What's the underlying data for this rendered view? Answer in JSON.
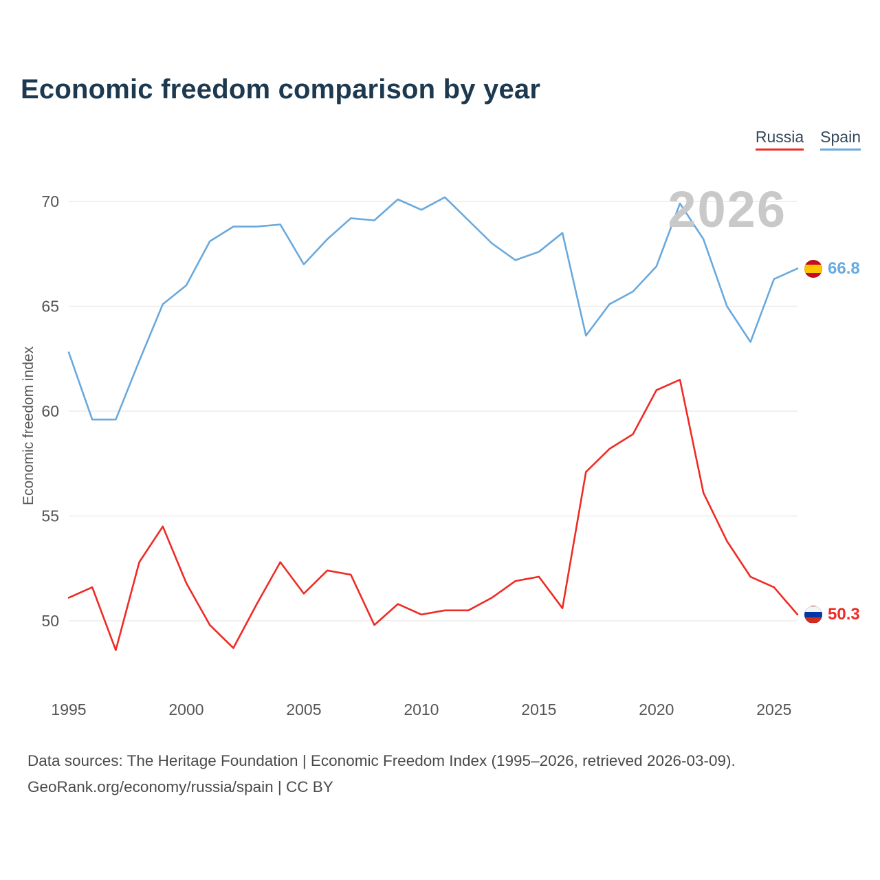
{
  "page": {
    "title": "Economic freedom comparison by year",
    "footer_line1": "Data sources: The Heritage Foundation | Economic Freedom Index (1995–2026, retrieved 2026-03-09).",
    "footer_line2": "GeoRank.org/economy/russia/spain | CC BY"
  },
  "legend": [
    {
      "label": "Russia",
      "color": "#ee2b24"
    },
    {
      "label": "Spain",
      "color": "#69a9de"
    }
  ],
  "chart_data": {
    "type": "line",
    "title": "Economic freedom comparison by year",
    "xlabel": "",
    "ylabel": "Economic freedom index",
    "watermark": "2026",
    "grid": "horizontal",
    "legend_position": "top-right",
    "ylim": [
      47.5,
      71
    ],
    "x": [
      1995,
      1996,
      1997,
      1998,
      1999,
      2000,
      2001,
      2002,
      2003,
      2004,
      2005,
      2006,
      2007,
      2008,
      2009,
      2010,
      2011,
      2012,
      2013,
      2014,
      2015,
      2016,
      2017,
      2018,
      2019,
      2020,
      2021,
      2022,
      2023,
      2024,
      2025,
      2026
    ],
    "x_ticks": [
      1995,
      2000,
      2005,
      2010,
      2015,
      2020,
      2025
    ],
    "y_ticks": [
      50,
      55,
      60,
      65,
      70
    ],
    "series": [
      {
        "name": "Spain",
        "color": "#69a9de",
        "end_label": "66.8",
        "flag_icon": "spain-flag-icon",
        "values": [
          62.8,
          59.6,
          59.6,
          62.4,
          65.1,
          66.0,
          68.1,
          68.8,
          68.8,
          68.9,
          67.0,
          68.2,
          69.2,
          69.1,
          70.1,
          69.6,
          70.2,
          69.1,
          68.0,
          67.2,
          67.6,
          68.5,
          63.6,
          65.1,
          65.7,
          66.9,
          69.9,
          68.2,
          65.0,
          63.3,
          66.3,
          66.8
        ]
      },
      {
        "name": "Russia",
        "color": "#ee2b24",
        "end_label": "50.3",
        "flag_icon": "russia-flag-icon",
        "values": [
          51.1,
          51.6,
          48.6,
          52.8,
          54.5,
          51.8,
          49.8,
          48.7,
          50.8,
          52.8,
          51.3,
          52.4,
          52.2,
          49.8,
          50.8,
          50.3,
          50.5,
          50.5,
          51.1,
          51.9,
          52.1,
          50.6,
          57.1,
          58.2,
          58.9,
          61.0,
          61.5,
          56.1,
          53.8,
          52.1,
          51.6,
          50.3
        ]
      }
    ]
  }
}
